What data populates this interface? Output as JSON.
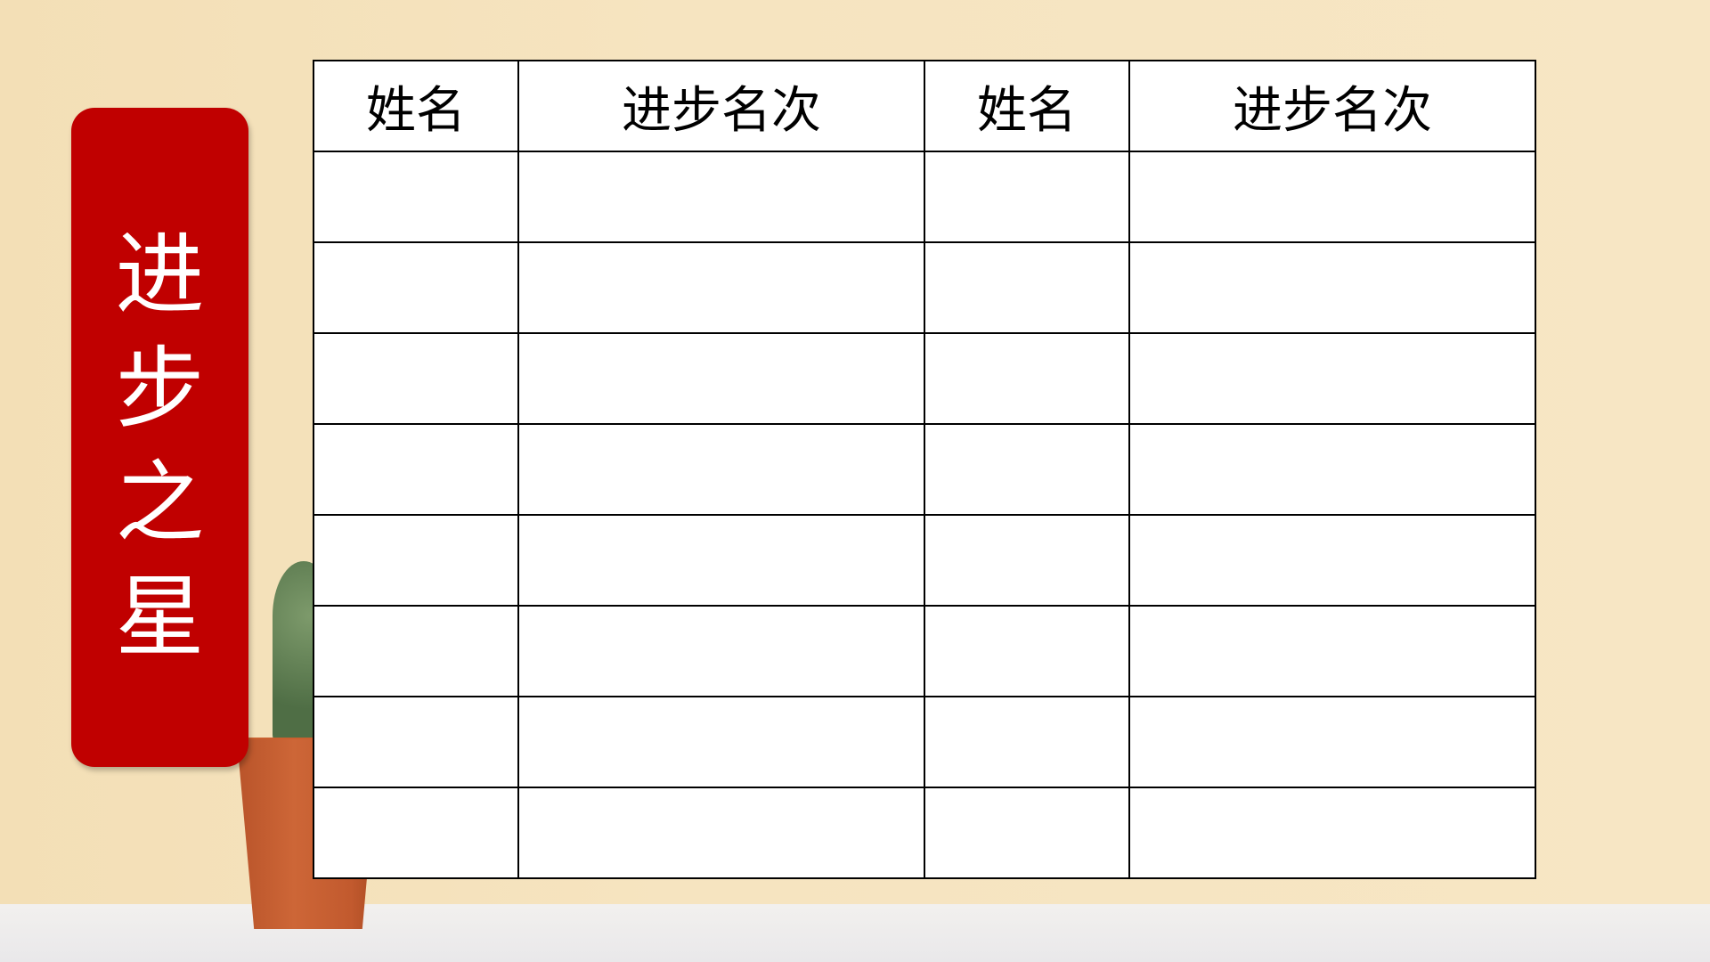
{
  "banner": {
    "chars": [
      "进",
      "步",
      "之",
      "星"
    ],
    "color": "#c00000"
  },
  "table": {
    "headers": [
      "姓名",
      "进步名次",
      "姓名",
      "进步名次"
    ],
    "rows": [
      [
        "",
        "",
        "",
        ""
      ],
      [
        "",
        "",
        "",
        ""
      ],
      [
        "",
        "",
        "",
        ""
      ],
      [
        "",
        "",
        "",
        ""
      ],
      [
        "",
        "",
        "",
        ""
      ],
      [
        "",
        "",
        "",
        ""
      ],
      [
        "",
        "",
        "",
        ""
      ],
      [
        "",
        "",
        "",
        ""
      ]
    ]
  }
}
